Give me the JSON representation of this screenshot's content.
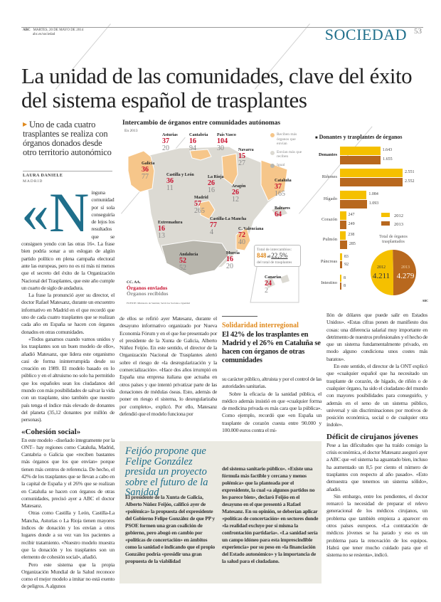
{
  "header": {
    "brand": "ABC",
    "date": "MARTES, 20 DE MAYO DE 2014",
    "url": "abc.es/sociedad",
    "section": "SOCIEDAD",
    "page": "53"
  },
  "watermark": "ABC",
  "headline": "La unidad de las comunidades, clave del éxito del sistema español de trasplantes",
  "subhead": "Uno de cada cuatro trasplantes se realiza con órganos donados desde otro territorio autonómico",
  "byline": {
    "author": "LAURA DANIELE",
    "place": "MADRID"
  },
  "col1": {
    "dropcap": "«N",
    "p0": "inguna comunidad por sí sola conseguiría de lejos los resultados que se consiguen yendo con las otras 16». La frase bien podría sonar a un eslogan de algún partido político en plena campaña electoral ante las europeas, pero no es ni más ni menos que el secreto del éxito de la Organización Nacional del Trasplantes, que este año cumple un cuarto de siglo de andadura.",
    "p1": "La frase la pronunció ayer su director, el doctor Rafael Matesanz, durante un encuentro informativo en Madrid en el que recordó que uno de cada cuatro trasplantes que se realizan cada año en España se hacen con órganos donados en otras comunidades.",
    "p2": "«Todos ganamos cuando vamos unidos y los trasplantes son un buen modelo de ello», añadió Matesanz, que lidera este organismo casi de forma ininterrumpida desde su creación en 1989. El modelo basado en lo público y en el altruismo no solo ha permitido que los españoles sean los ciudadanos del mundo con más posibilidades de salvar la vida con un trasplante, sino también que nuestro país tenga el índice más elevado de donantes del planeta (35,12 donantes por millón de personas).",
    "h": "«Cohesión social»",
    "p3": "En este modelo –diseñado íntegramente por la ONT– hay regiones como Cataluña, Madrid, Cantabria o Galicia que «reciben bastantes más órganos que los que envían» porque tienen más centros de referencia. De hecho, el 42% de los trasplantes que se llevan a cabo en la capital de España y el 26% que se realizan en Cataluña se hacen con órganos de otras comunidades, precisó ayer a ABC el doctor Matesanz.",
    "p4": "Otras como Castilla y León, Castilla-La Mancha, Asturias o La Rioja tienen mayores índices de donación y los envían a otros lugares donde a su vez van los pacientes a recibir tratamiento. «Nuestro modelo muestra que la donación y los trasplantes son un elemento de cohesión social», añadió.",
    "p5": "Pero este sistema que la propia Organización Mundial de la Salud reconoce como el mejor modelo a imitar no está exento de peligros. A algunos"
  },
  "col2": {
    "p0": "de ellos se refirió ayer Matesanz, durante el desayuno informativo organizado por Nueva Economía Fórum y en el que fue presentado por el presidente de la Xunta de Galicia, Alberto Núñez Feijóo. En este sentido, el director de la Organización Nacional de Trasplantes alertó sobre el riesgo de «la desregularización y la comercialización». «Hace dos años irrumpió en España una empresa italiana que actuaba en otros países y que intentó privatizar parte de las donaciones de médulas óseas. Esto, además de poner en riesgo el sistema, lo desregularizaba por completo», explicó. Por ello, Matesanz defendió que el modelo funciona por"
  },
  "col3": {
    "kicker": "Solidaridad interregional",
    "headline": "El 42% de los trasplantes en Madrid y el 26% en Cataluña se hacen con órganos de otras comunidades",
    "p0": "su carácter público, altruista y por el control de las autoridades sanitarias.",
    "p1": "Sobre la eficacia de la sanidad pública, el médico además insistió en que «cualquier forma de medicina privada es más cara que la pública». Como ejemplo, recordó que «en España un trasplante de corazón cuesta entre 90.000 y 100.000 euros contra el mi-"
  },
  "col4": {
    "p0": "llón de dólares que puede salir en Estados Unidos». «Estas cifras ponen de manifiesto dos cosas: una diferencia salarial muy importante en detrimento de nuestros profesionales y el hecho de que un sistema fundamentalmente privado, en modo alguno condiciona unos costes más baratos».",
    "p1": "En este sentido, el director de la ONT explicó que «cualquier español que ha necesitado un trasplante de corazón, de hígado, de riñón o de cualquier órgano, ha sido el ciudadano del mundo con mayores posibilidades para conseguirlo, y además en el seno de un sistema público, universal y sin discriminaciones por motivos de posición económica, social o de cualquier otra índole».",
    "h": "Déficit de cirujanos jóvenes",
    "p2": "Pese a las dificultades que ha traído consigo la crisis económica, el doctor Matesanz aseguró ayer a ABC que «el sistema ha aguantado bien, incluso ha aumentado un 8,5 por ciento el número de trasplantes con respecto al año pasado». «Esto demuestra que tenemos un sistema sólido», añadió.",
    "p3": "Sin embargo, entre los pendientes, el doctor remarcó la necesidad de preparar el relevo generacional de los médicos cirujanos, un problema que también empieza a aparecer en otros países europeos. «La contratación de médicos jóvenes se ha parado y eso es un problema para la renovación de los equipos. Habrá que tener mucho cuidado para que el sistema no se resienta», indicó."
  },
  "box": {
    "title": "Feijóo propone que Felipe González presida un proyecto sobre el futuro de la Sanidad",
    "a": "El presidente de la Xunta de Galicia, Alberto Núñez Feijóo, calificó ayer de «polémica» la propuesta del expresidente del Gobierno Felipe González de que PP y PSOE formen una gran coalición de gobierno, pero abogó en cambio por «políticas de concertación» en ámbitos como la sanidad e indicando que el propio González podría «presidir una gran propuesta de la viabilidad",
    "b": "del sistema sanitario público». «Existe una fórmula más factible y cercana y menos polémica» que la planteada por el expresidente, la cual «a algunos partidos no les parece bien», declaró Feijóo en el desayuno en el que presentó a Rafael Matesanz. En su opinión, se deberían aplicar «políticas de concertación» en sectores donde «la realidad excluye por sí misma la confrontación partidaria». «La sanidad sería un campo idóneo para esta imprescindible experiencia» por su peso en «la financiación del Estado autonómico» y la importancia de la salud para el ciudadano."
  },
  "map": {
    "title": "Intercambio de órganos entre comunidades autónomas",
    "year": "En 2013",
    "legend": [
      "Reciben más órganos que envían",
      "Envían más que reciben",
      "Igual"
    ],
    "colors": {
      "receive": "#f6c68a",
      "send": "#dcdad3",
      "equal": "#b8b6ad",
      "sent_text": "#c8102e"
    },
    "regions": [
      {
        "name": "Asturias",
        "sent": "37",
        "received": "20"
      },
      {
        "name": "Cantabria",
        "sent": "16",
        "received": "94"
      },
      {
        "name": "País Vasco",
        "sent": "104",
        "received": "30"
      },
      {
        "name": "Navarra",
        "sent": "15",
        "received": "27"
      },
      {
        "name": "Galicia",
        "sent": "36",
        "received": "77"
      },
      {
        "name": "Castilla y León",
        "sent": "36",
        "received": "11"
      },
      {
        "name": "La Rioja",
        "sent": "26",
        "received": "16"
      },
      {
        "name": "Aragón",
        "sent": "26",
        "received": "12"
      },
      {
        "name": "Cataluña",
        "sent": "37",
        "received": "165"
      },
      {
        "name": "Madrid",
        "sent": "57",
        "received": "265"
      },
      {
        "name": "Baleares",
        "sent": "64",
        "received": ""
      },
      {
        "name": "Castilla-La Mancha",
        "sent": "77",
        "received": "4"
      },
      {
        "name": "Extremadura",
        "sent": "16",
        "received": "13"
      },
      {
        "name": "C. Valenciana",
        "sent": "72",
        "received": "40"
      },
      {
        "name": "Andalucía",
        "sent": "52",
        "received": "52"
      },
      {
        "name": "Murcia",
        "sent": "16",
        "received": "20"
      },
      {
        "name": "Canarias",
        "sent": "24",
        "received": "2"
      }
    ],
    "total": {
      "label": "Total de intercambios:",
      "value": "848",
      "connector": "el",
      "pct": "22,5%",
      "suffix": "del total de trasplantes"
    },
    "key": {
      "title": "CC. AA.",
      "sent": "Órganos enviados",
      "received": "Órganos recibidos"
    },
    "source": "FUENTE: Ministerio de Sanidad, Servicios Sociales e Igualdad"
  },
  "chart_data": [
    {
      "type": "bar",
      "title": "Donantes y trasplantes de órganos",
      "categories": [
        "Donantes",
        "Riñones",
        "Hígado",
        "Corazón",
        "Pulmón",
        "Páncreas",
        "Intestino"
      ],
      "series": [
        {
          "name": "2012",
          "color": "#f5c000",
          "values": [
            1643,
            2551,
            1084,
            247,
            238,
            83,
            8
          ],
          "labels": [
            "1.643",
            "2.551",
            "1.084",
            "247",
            "238",
            "83",
            "8"
          ]
        },
        {
          "name": "2013",
          "color": "#b8681e",
          "values": [
            1655,
            2552,
            1093,
            249,
            285,
            92,
            8
          ],
          "labels": [
            "1.655",
            "2.552",
            "1.093",
            "249",
            "285",
            "92",
            "8"
          ]
        }
      ],
      "xlim": [
        0,
        2552
      ]
    },
    {
      "type": "pie",
      "title": "Total de órganos trasplantados",
      "categories": [
        "2012",
        "2013"
      ],
      "values": [
        4211,
        4279
      ],
      "labels": [
        "4.211",
        "4.279"
      ],
      "colors": [
        "#f5c000",
        "#b8681e"
      ]
    }
  ]
}
